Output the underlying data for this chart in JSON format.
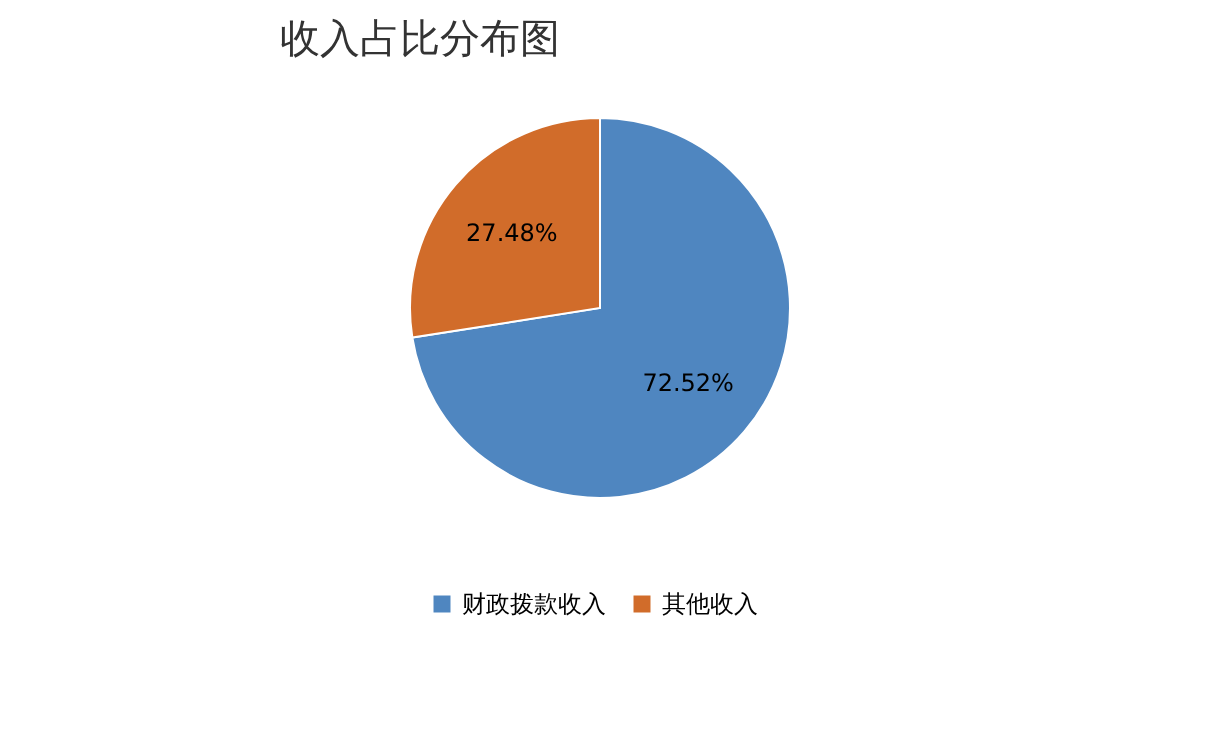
{
  "chart_data": {
    "type": "pie",
    "title": "收入占比分布图",
    "categories": [
      "财政拨款收入",
      "其他收入"
    ],
    "values": [
      72.52,
      27.48
    ],
    "colors": [
      "#4f86c0",
      "#d16c2a"
    ],
    "value_labels": [
      "72.52%",
      "27.48%"
    ],
    "legend": "bottom"
  }
}
